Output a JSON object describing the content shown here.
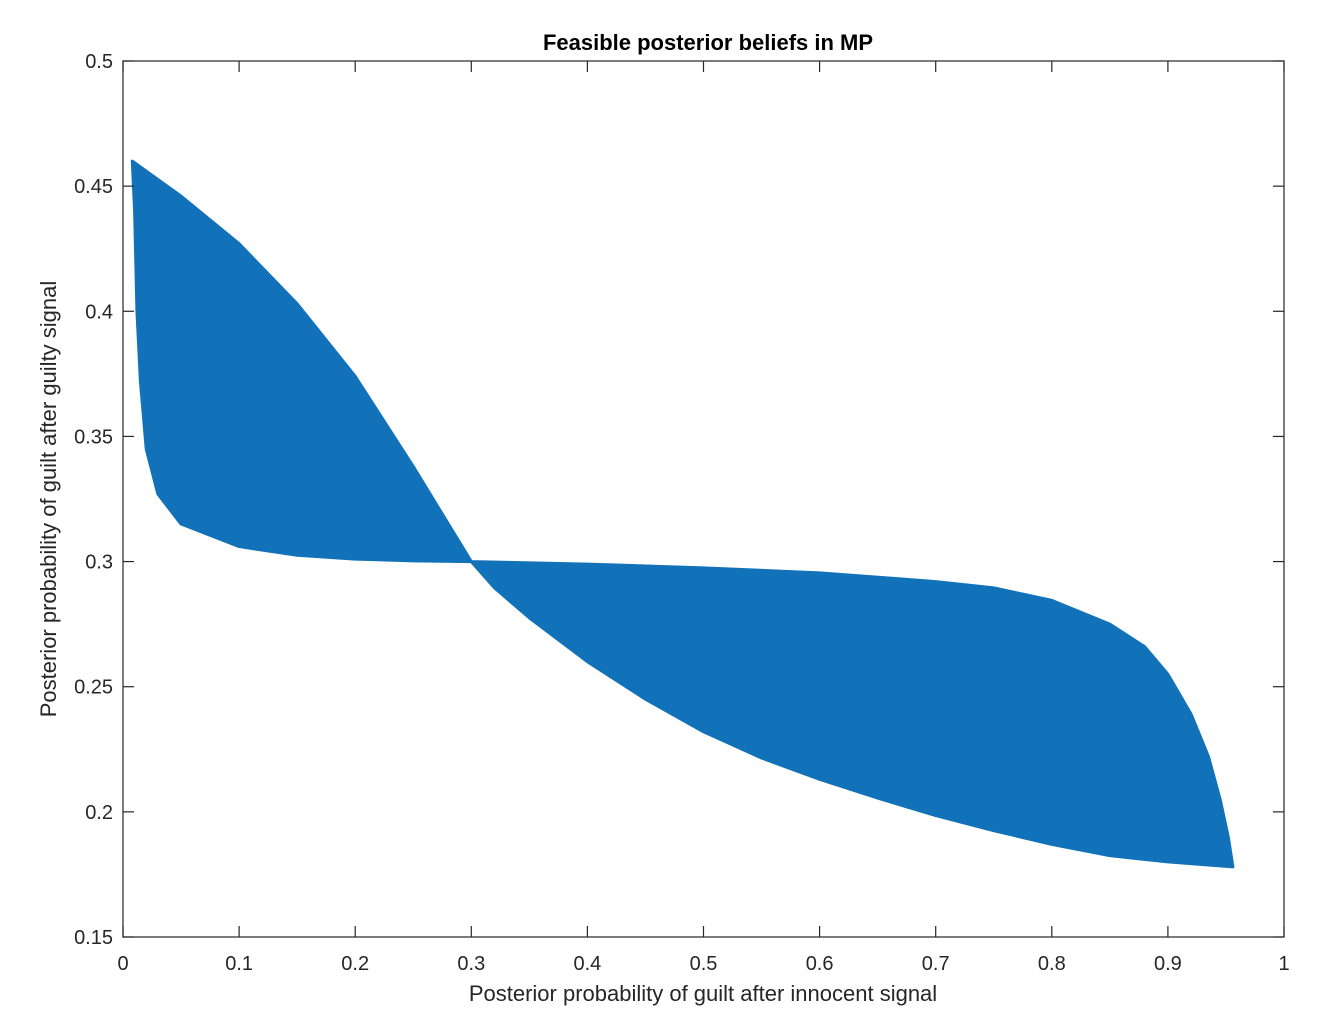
{
  "chart_data": {
    "type": "area",
    "title": "Feasible posterior beliefs in MP",
    "xlabel": "Posterior probability of guilt after innocent signal",
    "ylabel": "Posterior probability of guilt after guilty signal",
    "xlim": [
      0,
      1
    ],
    "ylim": [
      0.15,
      0.5
    ],
    "xticks": [
      0,
      0.1,
      0.2,
      0.3,
      0.4,
      0.5,
      0.6,
      0.7,
      0.8,
      0.9,
      1
    ],
    "xtick_labels": [
      "0",
      "0.1",
      "0.2",
      "0.3",
      "0.4",
      "0.5",
      "0.6",
      "0.7",
      "0.8",
      "0.9",
      "1"
    ],
    "yticks": [
      0.15,
      0.2,
      0.25,
      0.3,
      0.35,
      0.4,
      0.45,
      0.5
    ],
    "ytick_labels": [
      "0.15",
      "0.2",
      "0.25",
      "0.3",
      "0.35",
      "0.4",
      "0.45",
      "0.5"
    ],
    "grid": false,
    "fill_color": "#1272b9",
    "axis_color": "#262626",
    "series": [
      {
        "values": {
          "upper_boundary": [
            [
              0.008,
              0.46
            ],
            [
              0.05,
              0.446
            ],
            [
              0.1,
              0.427
            ],
            [
              0.15,
              0.403
            ],
            [
              0.2,
              0.374
            ],
            [
              0.25,
              0.338
            ],
            [
              0.3,
              0.3
            ],
            [
              0.32,
              0.2895
            ],
            [
              0.35,
              0.2775
            ],
            [
              0.4,
              0.26
            ],
            [
              0.45,
              0.245
            ],
            [
              0.5,
              0.232
            ],
            [
              0.55,
              0.2215
            ],
            [
              0.6,
              0.213
            ],
            [
              0.65,
              0.2055
            ],
            [
              0.7,
              0.1985
            ],
            [
              0.75,
              0.1925
            ],
            [
              0.8,
              0.187
            ],
            [
              0.85,
              0.1825
            ],
            [
              0.9,
              0.18
            ],
            [
              0.956,
              0.178
            ]
          ],
          "lower_boundary": [
            [
              0.008,
              0.46
            ],
            [
              0.01,
              0.44
            ],
            [
              0.012,
              0.4
            ],
            [
              0.015,
              0.372
            ],
            [
              0.02,
              0.345
            ],
            [
              0.03,
              0.327
            ],
            [
              0.05,
              0.315
            ],
            [
              0.1,
              0.306
            ],
            [
              0.15,
              0.3025
            ],
            [
              0.2,
              0.301
            ],
            [
              0.25,
              0.3003
            ],
            [
              0.3,
              0.3
            ],
            [
              0.4,
              0.299
            ],
            [
              0.5,
              0.2975
            ],
            [
              0.6,
              0.2955
            ],
            [
              0.7,
              0.292
            ],
            [
              0.75,
              0.2895
            ],
            [
              0.8,
              0.2845
            ],
            [
              0.85,
              0.275
            ],
            [
              0.88,
              0.266
            ],
            [
              0.9,
              0.255
            ],
            [
              0.92,
              0.239
            ],
            [
              0.935,
              0.222
            ],
            [
              0.945,
              0.205
            ],
            [
              0.952,
              0.19
            ],
            [
              0.956,
              0.178
            ]
          ]
        }
      }
    ]
  }
}
